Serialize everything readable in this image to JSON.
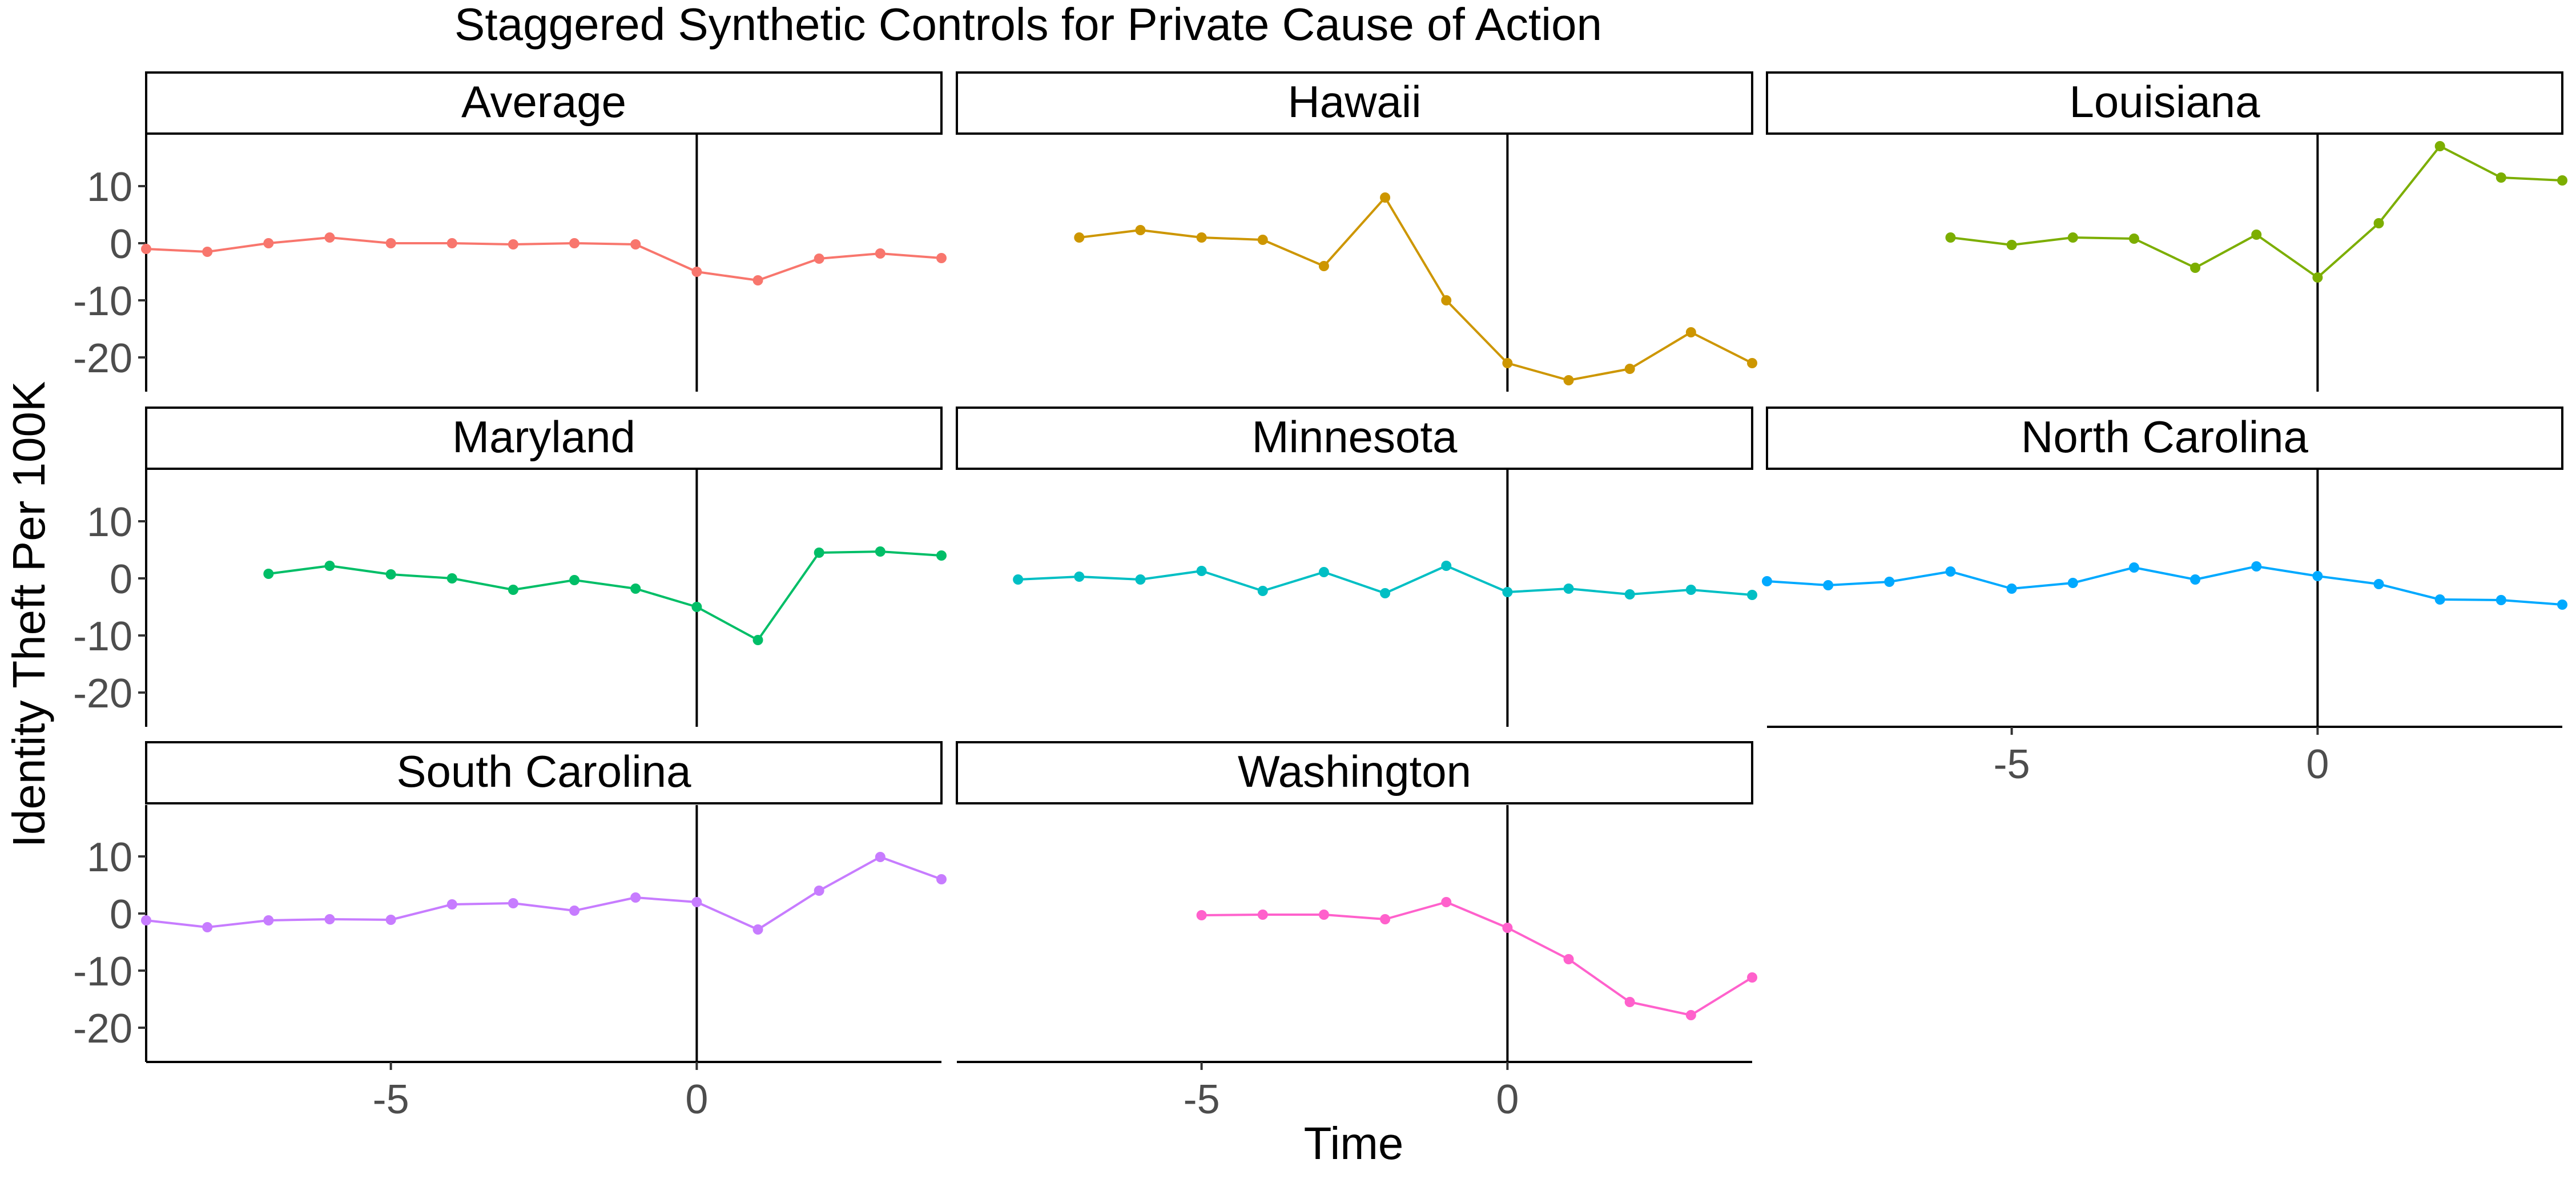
{
  "chart_data": {
    "type": "line",
    "title": "Staggered Synthetic Controls for Private Cause of Action",
    "xlabel": "Time",
    "ylabel": "Identity Theft Per 100K",
    "xlim": [
      -9,
      4
    ],
    "ylim": [
      -26,
      19
    ],
    "x_ticks": [
      -5,
      0
    ],
    "y_ticks": [
      10,
      0,
      -10,
      -20
    ],
    "vline_x": 0,
    "grid": false,
    "legend": "none",
    "panels": [
      {
        "name": "Average",
        "color": "#F8766D",
        "x": [
          -9,
          -8,
          -7,
          -6,
          -5,
          -4,
          -3,
          -2,
          -1,
          0,
          1,
          2,
          3,
          4
        ],
        "y": [
          -1,
          -1.5,
          0,
          1,
          0,
          0,
          -0.2,
          0,
          -0.2,
          -5,
          -6.5,
          -2.7,
          -1.8,
          -2.6
        ]
      },
      {
        "name": "Hawaii",
        "color": "#CD9600",
        "x": [
          -7,
          -6,
          -5,
          -4,
          -3,
          -2,
          -1,
          0,
          1,
          2,
          3,
          4
        ],
        "y": [
          1,
          2.3,
          1,
          0.6,
          -4,
          8,
          -10,
          -21,
          -24,
          -22,
          -15.6,
          -21
        ]
      },
      {
        "name": "Louisiana",
        "color": "#7CAE00",
        "x": [
          -6,
          -5,
          -4,
          -3,
          -2,
          -1,
          0,
          1,
          2,
          3,
          4
        ],
        "y": [
          1,
          -0.3,
          1,
          0.8,
          -4.3,
          1.5,
          -6,
          3.5,
          17,
          11.5,
          11
        ]
      },
      {
        "name": "Maryland",
        "color": "#00BE67",
        "x": [
          -7,
          -6,
          -5,
          -4,
          -3,
          -2,
          -1,
          0,
          1,
          2,
          3,
          4
        ],
        "y": [
          0.8,
          2.2,
          0.7,
          0,
          -2,
          -0.3,
          -1.8,
          -5,
          -10.8,
          4.5,
          4.7,
          4
        ]
      },
      {
        "name": "Minnesota",
        "color": "#00BFC4",
        "x": [
          -8,
          -7,
          -6,
          -5,
          -4,
          -3,
          -2,
          -1,
          0,
          1,
          2,
          3,
          4
        ],
        "y": [
          -0.2,
          0.3,
          -0.2,
          1.3,
          -2.2,
          1.1,
          -2.6,
          2.2,
          -2.4,
          -1.8,
          -2.8,
          -2,
          -2.9
        ]
      },
      {
        "name": "North Carolina",
        "color": "#00A9FF",
        "x": [
          -9,
          -8,
          -7,
          -6,
          -5,
          -4,
          -3,
          -2,
          -1,
          0,
          1,
          2,
          3,
          4
        ],
        "y": [
          -0.5,
          -1.2,
          -0.6,
          1.2,
          -1.8,
          -0.8,
          1.9,
          -0.2,
          2.1,
          0.4,
          -1,
          -3.7,
          -3.8,
          -4.6
        ]
      },
      {
        "name": "South Carolina",
        "color": "#C77CFF",
        "x": [
          -9,
          -8,
          -7,
          -6,
          -5,
          -4,
          -3,
          -2,
          -1,
          0,
          1,
          2,
          3,
          4
        ],
        "y": [
          -1.2,
          -2.4,
          -1.2,
          -1,
          -1.1,
          1.6,
          1.8,
          0.5,
          2.8,
          2,
          -2.8,
          4,
          9.9,
          6
        ]
      },
      {
        "name": "Washington",
        "color": "#FF61CC",
        "x": [
          -5,
          -4,
          -3,
          -2,
          -1,
          0,
          1,
          2,
          3,
          4
        ],
        "y": [
          -0.3,
          -0.2,
          -0.2,
          -1,
          2,
          -2.5,
          -8,
          -15.5,
          -17.8,
          -11.2
        ]
      }
    ]
  }
}
